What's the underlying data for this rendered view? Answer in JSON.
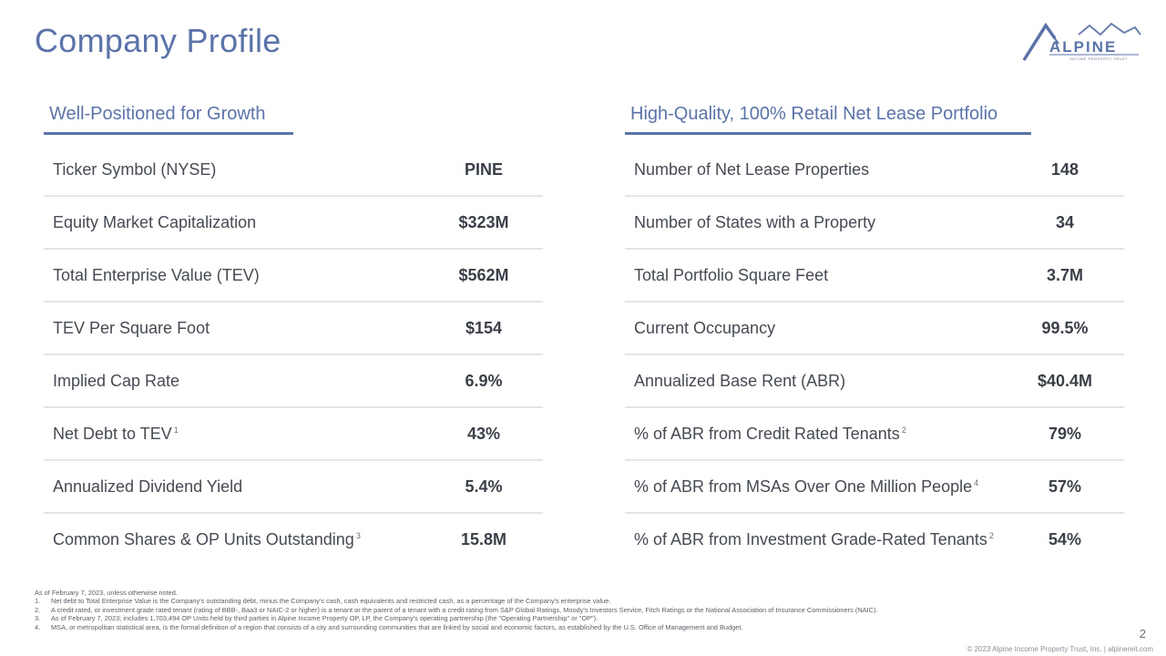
{
  "page_title": "Company Profile",
  "logo": {
    "word": "ALPINE",
    "tag": "INCOME PROPERTY TRUST"
  },
  "left_panel": {
    "heading": "Well-Positioned for Growth",
    "rows": [
      {
        "label": "Ticker Symbol (NYSE)",
        "sup": "",
        "value": "PINE"
      },
      {
        "label": "Equity Market Capitalization",
        "sup": "",
        "value": "$323M"
      },
      {
        "label": "Total Enterprise Value (TEV)",
        "sup": "",
        "value": "$562M"
      },
      {
        "label": "TEV Per Square Foot",
        "sup": "",
        "value": "$154"
      },
      {
        "label": "Implied Cap Rate",
        "sup": "",
        "value": "6.9%"
      },
      {
        "label": "Net Debt to TEV",
        "sup": "1",
        "value": "43%"
      },
      {
        "label": "Annualized Dividend Yield",
        "sup": "",
        "value": "5.4%"
      },
      {
        "label": "Common Shares & OP Units Outstanding",
        "sup": "3",
        "value": "15.8M"
      }
    ]
  },
  "right_panel": {
    "heading": "High-Quality, 100% Retail Net Lease Portfolio",
    "rows": [
      {
        "label": "Number of Net Lease Properties",
        "sup": "",
        "value": "148"
      },
      {
        "label": "Number of States with a Property",
        "sup": "",
        "value": "34"
      },
      {
        "label": "Total Portfolio Square Feet",
        "sup": "",
        "value": "3.7M"
      },
      {
        "label": "Current Occupancy",
        "sup": "",
        "value": "99.5%"
      },
      {
        "label": "Annualized Base Rent (ABR)",
        "sup": "",
        "value": "$40.4M"
      },
      {
        "label": "% of ABR from Credit Rated Tenants",
        "sup": "2",
        "value": "79%"
      },
      {
        "label": "% of ABR from MSAs Over One Million People",
        "sup": "4",
        "value": "57%"
      },
      {
        "label": "% of ABR from Investment Grade-Rated Tenants",
        "sup": "2",
        "value": "54%"
      }
    ]
  },
  "footnotes": {
    "intro": "As of February 7, 2023, unless otherwise noted.",
    "items": [
      {
        "num": "1.",
        "text": "Net debt to Total Enterprise Value is the Company's outstanding debt, minus the Company's cash, cash equivalents and restricted cash, as a percentage of the Company's enterprise value."
      },
      {
        "num": "2.",
        "text": "A credit rated, or investment grade rated tenant (rating of BBB-, Baa3 or NAIC-2 or higher) is a tenant or the parent of a tenant with a credit rating from S&P Global Ratings, Moody's Investors Service, Fitch Ratings or the National Association of Insurance Commissioners (NAIC)."
      },
      {
        "num": "3.",
        "text": "As of February 7, 2023; includes 1,703,494 OP Units held by third parties in Alpine Income Property OP, LP, the Company's operating partnership (the \"Operating Partnership\" or \"OP\")."
      },
      {
        "num": "4.",
        "text": "MSA, or metropolitan statistical area, is the formal definition of a region that consists of a city and surrounding communities that are linked by social and economic factors, as established by the U.S. Office of Management and Budget."
      }
    ]
  },
  "page_number": "2",
  "copyright": "© 2023 Alpine Income Property Trust, Inc.  |  alpinereit.com",
  "colors": {
    "accent": "#5b73a8",
    "divider": "#e3e5ea",
    "text": "#3a3f48"
  }
}
